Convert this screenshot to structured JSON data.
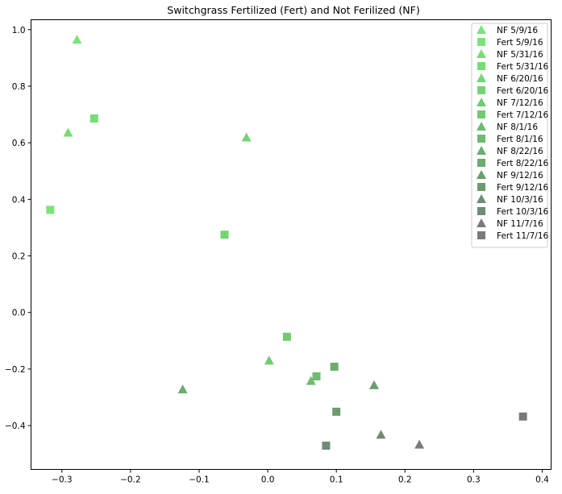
{
  "chart_data": {
    "type": "scatter",
    "title": "Switchgrass Fertilized (Fert) and Not Ferilized (NF)",
    "xlabel": "",
    "ylabel": "",
    "xlim": [
      -0.345,
      0.413
    ],
    "ylim": [
      -0.555,
      1.035
    ],
    "xticks": [
      -0.3,
      -0.2,
      -0.1,
      0.0,
      0.1,
      0.2,
      0.3,
      0.4
    ],
    "xtick_labels": [
      "−0.3",
      "−0.2",
      "−0.1",
      "0.0",
      "0.1",
      "0.2",
      "0.3",
      "0.4"
    ],
    "yticks": [
      -0.4,
      -0.2,
      0.0,
      0.2,
      0.4,
      0.6,
      0.8,
      1.0
    ],
    "ytick_labels": [
      "−0.4",
      "−0.2",
      "0.0",
      "0.2",
      "0.4",
      "0.6",
      "0.8",
      "1.0"
    ],
    "grid": false,
    "legend_position": "top-right",
    "series": [
      {
        "name": "NF 5/9/16",
        "marker": "triangle",
        "color": "#7ae47a",
        "x": -0.278,
        "y": 0.965
      },
      {
        "name": "Fert 5/9/16",
        "marker": "square",
        "color": "#7ae47a",
        "x": -0.317,
        "y": 0.363
      },
      {
        "name": "NF 5/31/16",
        "marker": "triangle",
        "color": "#77dc77",
        "x": -0.291,
        "y": 0.636
      },
      {
        "name": "Fert 5/31/16",
        "marker": "square",
        "color": "#77dc77",
        "x": -0.253,
        "y": 0.686
      },
      {
        "name": "NF 6/20/16",
        "marker": "triangle",
        "color": "#74d474",
        "x": -0.031,
        "y": 0.619
      },
      {
        "name": "Fert 6/20/16",
        "marker": "square",
        "color": "#74d474",
        "x": -0.063,
        "y": 0.275
      },
      {
        "name": "NF 7/12/16",
        "marker": "triangle",
        "color": "#72c972",
        "x": 0.002,
        "y": -0.17
      },
      {
        "name": "Fert 7/12/16",
        "marker": "square",
        "color": "#72c972",
        "x": 0.028,
        "y": -0.086
      },
      {
        "name": "NF 8/1/16",
        "marker": "triangle",
        "color": "#6fba70",
        "x": 0.063,
        "y": -0.242
      },
      {
        "name": "Fert 8/1/16",
        "marker": "square",
        "color": "#6fba70",
        "x": 0.071,
        "y": -0.226
      },
      {
        "name": "NF 8/22/16",
        "marker": "triangle",
        "color": "#6cac6f",
        "x": -0.124,
        "y": -0.272
      },
      {
        "name": "Fert 8/22/16",
        "marker": "square",
        "color": "#6cac6f",
        "x": 0.097,
        "y": -0.192
      },
      {
        "name": "NF 9/12/16",
        "marker": "triangle",
        "color": "#6c9c6e",
        "x": 0.155,
        "y": -0.257
      },
      {
        "name": "Fert 9/12/16",
        "marker": "square",
        "color": "#6c9c6e",
        "x": 0.1,
        "y": -0.351
      },
      {
        "name": "NF 10/3/16",
        "marker": "triangle",
        "color": "#708c72",
        "x": 0.165,
        "y": -0.432
      },
      {
        "name": "Fert 10/3/16",
        "marker": "square",
        "color": "#708c72",
        "x": 0.085,
        "y": -0.471
      },
      {
        "name": "NF 11/7/16",
        "marker": "triangle",
        "color": "#787c78",
        "x": 0.221,
        "y": -0.467
      },
      {
        "name": "Fert 11/7/16",
        "marker": "square",
        "color": "#787c78",
        "x": 0.372,
        "y": -0.368
      }
    ]
  }
}
